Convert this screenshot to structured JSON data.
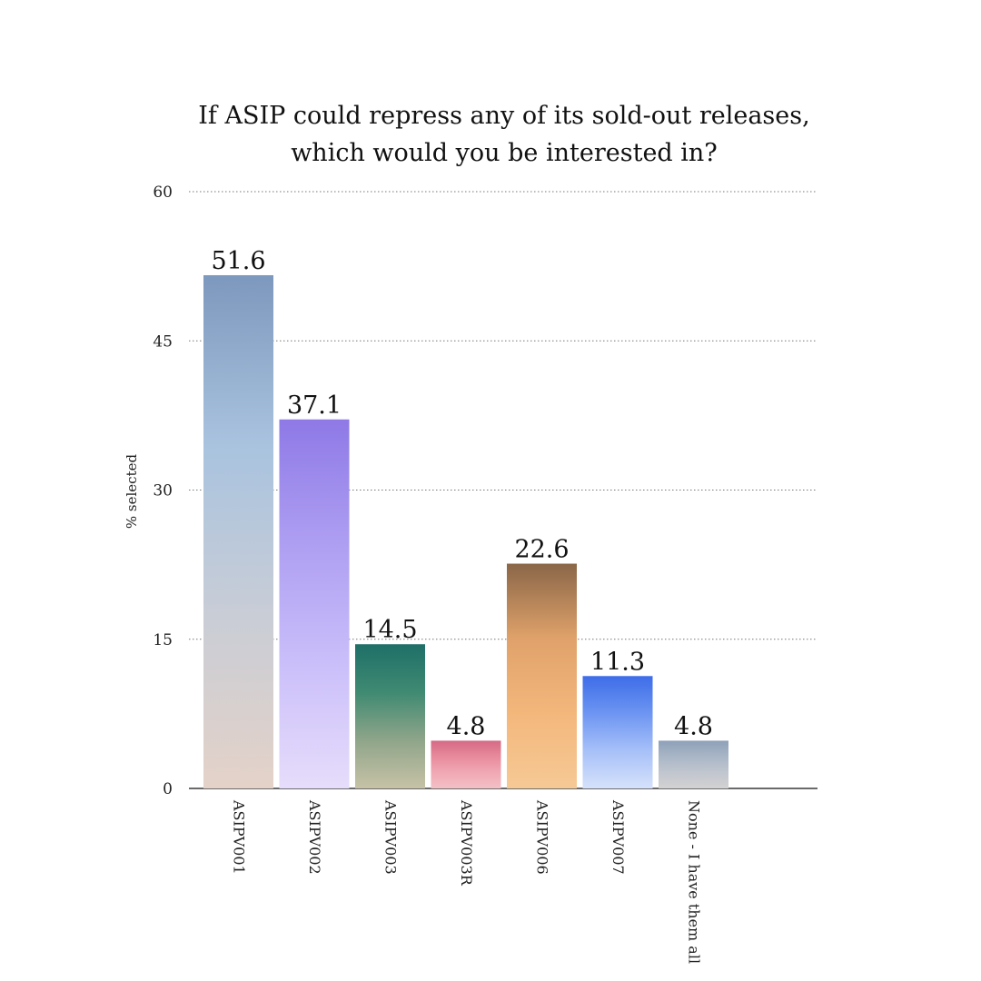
{
  "chart_data": {
    "type": "bar",
    "title": [
      "If ASIP could repress any of its sold-out releases,",
      "which would you be interested in?"
    ],
    "ylabel": "% selected",
    "xlabel": "",
    "ylim": [
      0,
      60
    ],
    "yticks": [
      0,
      15,
      30,
      45,
      60
    ],
    "grid": true,
    "categories": [
      "ASIPV001",
      "ASIPV002",
      "ASIPV003",
      "ASIPV003R",
      "ASIPV006",
      "ASIPV007",
      "None - I have them all"
    ],
    "values": [
      51.6,
      37.1,
      14.5,
      4.8,
      22.6,
      11.3,
      4.8
    ],
    "value_labels": [
      "51.6",
      "37.1",
      "14.5",
      "4.8",
      "22.6",
      "11.3",
      "4.8"
    ],
    "bar_gradients": [
      [
        "#7d98bd",
        "#a9c3df",
        "#c9cdd6",
        "#e4d2c8"
      ],
      [
        "#8e79e6",
        "#ae9ef2",
        "#cbbffa",
        "#e6ddfb"
      ],
      [
        "#1f6f68",
        "#3f8a72",
        "#8fa58a",
        "#c7c2a6"
      ],
      [
        "#d46a84",
        "#e88a9c",
        "#f0a8b4",
        "#f3c0c6"
      ],
      [
        "#8a6648",
        "#e0a26a",
        "#f3b77c",
        "#f6c995"
      ],
      [
        "#3d6de8",
        "#6d95f2",
        "#a7c0f8",
        "#d6e2fb"
      ],
      [
        "#8ea0b8",
        "#a9b6c6",
        "#c1c6cf",
        "#d3d1d2"
      ]
    ]
  }
}
